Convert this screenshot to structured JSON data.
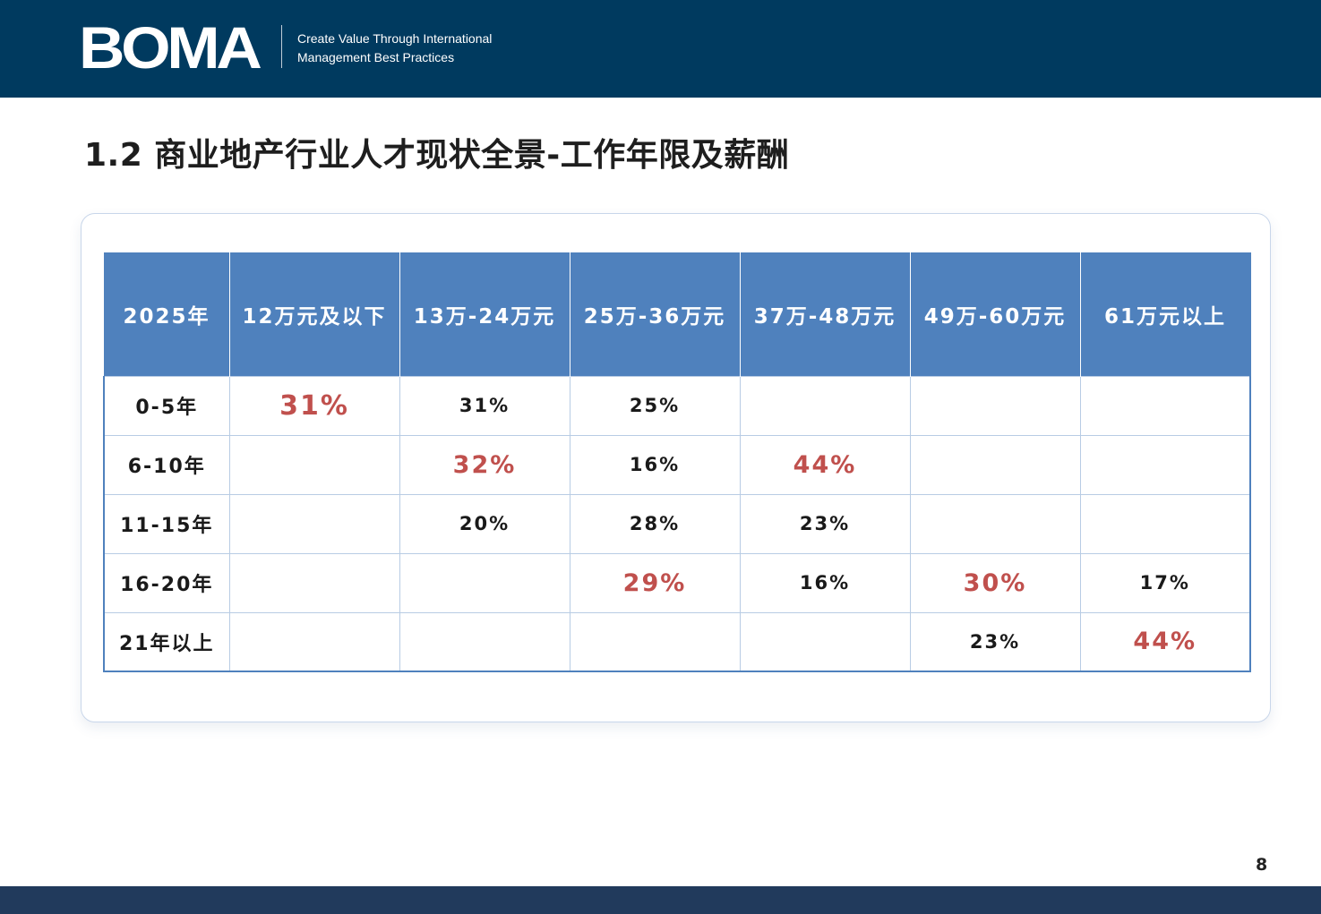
{
  "header": {
    "logo_text": "BOMA",
    "tagline_line1": "Create Value Through International",
    "tagline_line2": "Management Best Practices"
  },
  "page_title": "1.2 商业地产行业人才现状全景-工作年限及薪酬",
  "table": {
    "columns": [
      "2025年",
      "12万元及以下",
      "13万-24万元",
      "25万-36万元",
      "37万-48万元",
      "49万-60万元",
      "61万元以上"
    ],
    "rows": [
      {
        "label": "0-5年",
        "cells": [
          "31%",
          "31%",
          "25%",
          "",
          "",
          ""
        ]
      },
      {
        "label": "6-10年",
        "cells": [
          "",
          "32%",
          "16%",
          "44%",
          "",
          ""
        ]
      },
      {
        "label": "11-15年",
        "cells": [
          "",
          "20%",
          "28%",
          "23%",
          "",
          ""
        ]
      },
      {
        "label": "16-20年",
        "cells": [
          "",
          "",
          "29%",
          "16%",
          "30%",
          "17%"
        ]
      },
      {
        "label": "21年以上",
        "cells": [
          "",
          "",
          "",
          "",
          "23%",
          "44%"
        ]
      }
    ],
    "highlight_color": "#c0504d",
    "header_color": "#4f81bd"
  },
  "page_number": "8"
}
